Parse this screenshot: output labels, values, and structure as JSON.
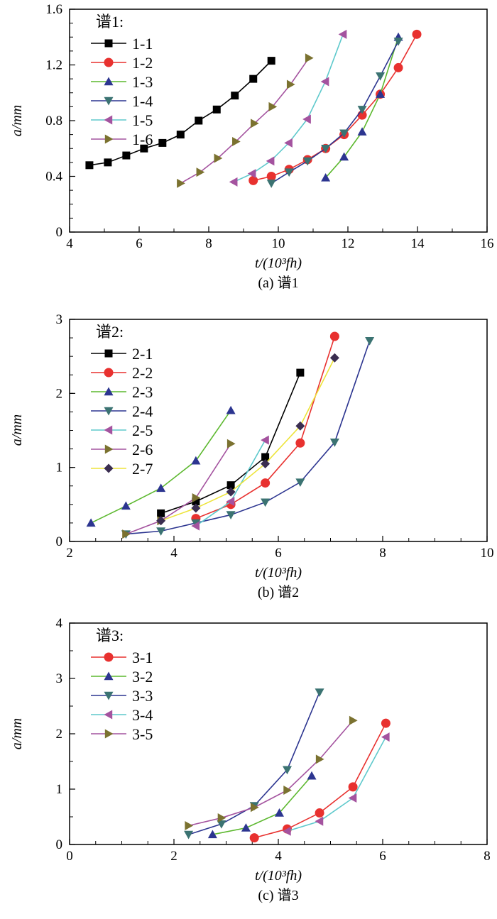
{
  "colors": {
    "black": "#000000",
    "red": "#e8312f",
    "green": "#5cb82e",
    "navy": "#2c3590",
    "teal": "#3b7372",
    "cyan": "#5ec9cc",
    "purple": "#a4539f",
    "olive": "#7b7230",
    "yellow": "#ede43a",
    "dark": "#3a2d50"
  },
  "chart_data": [
    {
      "type": "line",
      "title": "(a) 谱1",
      "xlabel": "t/(10³fh)",
      "ylabel": "a/mm",
      "xlim": [
        4,
        16
      ],
      "ylim": [
        0,
        1.6
      ],
      "xticks": [
        "4",
        "6",
        "8",
        "10",
        "12",
        "14",
        "16"
      ],
      "yticks": [
        "0",
        "0.4",
        "0.8",
        "1.2",
        "1.6"
      ],
      "legend_title": "谱1:",
      "legend_position": "top-left",
      "series": [
        {
          "name": "1-1",
          "line": "black",
          "marker": "square",
          "mcolor": "black",
          "x": [
            4.57,
            5.1,
            5.63,
            6.14,
            6.67,
            7.19,
            7.71,
            8.23,
            8.75,
            9.28,
            9.8
          ],
          "y": [
            0.48,
            0.5,
            0.55,
            0.6,
            0.64,
            0.7,
            0.8,
            0.88,
            0.98,
            1.1,
            1.23
          ]
        },
        {
          "name": "1-2",
          "line": "red",
          "marker": "circle",
          "mcolor": "red",
          "x": [
            9.28,
            9.8,
            10.31,
            10.84,
            11.36,
            11.89,
            12.41,
            12.93,
            13.45,
            13.98
          ],
          "y": [
            0.37,
            0.4,
            0.45,
            0.52,
            0.6,
            0.7,
            0.84,
            0.99,
            1.18,
            1.42
          ]
        },
        {
          "name": "1-3",
          "line": "green",
          "marker": "triangle-up",
          "mcolor": "navy",
          "x": [
            11.36,
            11.89,
            12.41,
            12.93,
            13.45
          ],
          "y": [
            0.39,
            0.54,
            0.72,
            0.99,
            1.4
          ]
        },
        {
          "name": "1-4",
          "line": "navy",
          "marker": "triangle-down",
          "mcolor": "teal",
          "x": [
            9.8,
            10.31,
            10.84,
            11.36,
            11.89,
            12.41,
            12.93,
            13.45
          ],
          "y": [
            0.35,
            0.43,
            0.51,
            0.6,
            0.71,
            0.88,
            1.12,
            1.37
          ]
        },
        {
          "name": "1-5",
          "line": "cyan",
          "marker": "triangle-left",
          "mcolor": "purple",
          "x": [
            8.72,
            9.25,
            9.78,
            10.3,
            10.83,
            11.35,
            11.86
          ],
          "y": [
            0.36,
            0.42,
            0.51,
            0.64,
            0.81,
            1.08,
            1.42
          ]
        },
        {
          "name": "1-6",
          "line": "purple",
          "marker": "triangle-right",
          "mcolor": "olive",
          "x": [
            7.19,
            7.75,
            8.26,
            8.78,
            9.31,
            9.83,
            10.35,
            10.88
          ],
          "y": [
            0.35,
            0.43,
            0.53,
            0.65,
            0.78,
            0.9,
            1.06,
            1.25
          ]
        }
      ]
    },
    {
      "type": "line",
      "title": "(b) 谱2",
      "xlabel": "t/(10³fh)",
      "ylabel": "a/mm",
      "xlim": [
        2,
        10
      ],
      "ylim": [
        0,
        3
      ],
      "xticks": [
        "2",
        "4",
        "6",
        "8",
        "10"
      ],
      "yticks": [
        "0",
        "1",
        "2",
        "3"
      ],
      "legend_title": "谱2:",
      "legend_position": "top-left",
      "series": [
        {
          "name": "2-1",
          "line": "black",
          "marker": "square",
          "mcolor": "black",
          "x": [
            3.75,
            4.42,
            5.09,
            5.75,
            6.42
          ],
          "y": [
            0.38,
            0.54,
            0.76,
            1.14,
            2.28
          ]
        },
        {
          "name": "2-2",
          "line": "red",
          "marker": "circle",
          "mcolor": "red",
          "x": [
            4.42,
            5.09,
            5.75,
            6.42,
            7.08
          ],
          "y": [
            0.31,
            0.5,
            0.79,
            1.33,
            2.77
          ]
        },
        {
          "name": "2-3",
          "line": "green",
          "marker": "triangle-up",
          "mcolor": "navy",
          "x": [
            2.41,
            3.08,
            3.75,
            4.42,
            5.09
          ],
          "y": [
            0.25,
            0.48,
            0.72,
            1.09,
            1.77
          ]
        },
        {
          "name": "2-4",
          "line": "navy",
          "marker": "triangle-down",
          "mcolor": "teal",
          "x": [
            3.08,
            3.75,
            4.42,
            5.09,
            5.75,
            6.42,
            7.08,
            7.75
          ],
          "y": [
            0.1,
            0.14,
            0.25,
            0.36,
            0.53,
            0.8,
            1.34,
            2.71
          ]
        },
        {
          "name": "2-5",
          "line": "cyan",
          "marker": "triangle-left",
          "mcolor": "purple",
          "x": [
            4.42,
            5.09,
            5.75
          ],
          "y": [
            0.21,
            0.54,
            1.37
          ]
        },
        {
          "name": "2-6",
          "line": "purple",
          "marker": "triangle-right",
          "mcolor": "olive",
          "x": [
            3.08,
            3.75,
            4.42,
            5.09
          ],
          "y": [
            0.1,
            0.28,
            0.59,
            1.32
          ]
        },
        {
          "name": "2-7",
          "line": "yellow",
          "marker": "diamond",
          "mcolor": "dark",
          "x": [
            3.75,
            4.42,
            5.09,
            5.75,
            6.42,
            7.08
          ],
          "y": [
            0.28,
            0.45,
            0.67,
            1.05,
            1.56,
            2.48
          ]
        }
      ]
    },
    {
      "type": "line",
      "title": "(c) 谱3",
      "xlabel": "t/(10³fh)",
      "ylabel": "a/mm",
      "xlim": [
        0,
        8
      ],
      "ylim": [
        0,
        4
      ],
      "xticks": [
        "0",
        "2",
        "4",
        "6",
        "8"
      ],
      "yticks": [
        "0",
        "1",
        "2",
        "3",
        "4"
      ],
      "legend_title": "谱3:",
      "legend_position": "top-left",
      "series": [
        {
          "name": "3-1",
          "line": "red",
          "marker": "circle",
          "mcolor": "red",
          "x": [
            3.54,
            4.17,
            4.79,
            5.43,
            6.06
          ],
          "y": [
            0.12,
            0.28,
            0.57,
            1.04,
            2.19
          ]
        },
        {
          "name": "3-2",
          "line": "green",
          "marker": "triangle-up",
          "mcolor": "navy",
          "x": [
            2.74,
            3.38,
            4.02,
            4.64
          ],
          "y": [
            0.18,
            0.3,
            0.57,
            1.24
          ]
        },
        {
          "name": "3-3",
          "line": "navy",
          "marker": "triangle-down",
          "mcolor": "teal",
          "x": [
            2.28,
            2.91,
            3.54,
            4.17,
            4.79
          ],
          "y": [
            0.18,
            0.37,
            0.7,
            1.35,
            2.75
          ]
        },
        {
          "name": "3-4",
          "line": "cyan",
          "marker": "triangle-left",
          "mcolor": "purple",
          "x": [
            4.17,
            4.79,
            5.43,
            6.06
          ],
          "y": [
            0.24,
            0.42,
            0.84,
            1.94
          ]
        },
        {
          "name": "3-5",
          "line": "purple",
          "marker": "triangle-right",
          "mcolor": "olive",
          "x": [
            2.28,
            2.91,
            3.54,
            4.17,
            4.79,
            5.43
          ],
          "y": [
            0.34,
            0.48,
            0.67,
            0.98,
            1.54,
            2.24
          ]
        }
      ]
    }
  ]
}
